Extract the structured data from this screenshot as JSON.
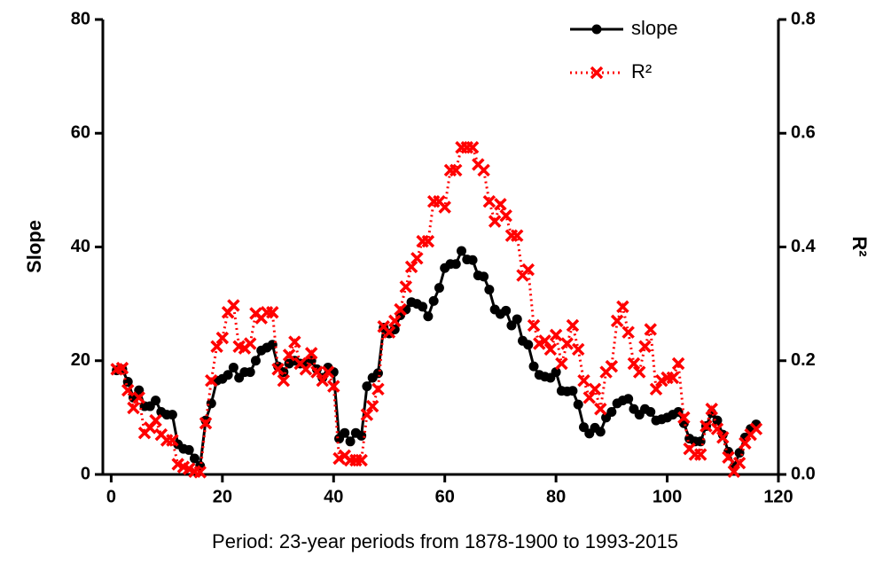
{
  "chart_data": {
    "type": "line",
    "xlabel": "Period: 23-year periods from 1878-1900 to 1993-2015",
    "ylabel": "Slope",
    "y2label": "R²",
    "x": [
      1,
      2,
      3,
      4,
      5,
      6,
      7,
      8,
      9,
      10,
      11,
      12,
      13,
      14,
      15,
      16,
      17,
      18,
      19,
      20,
      21,
      22,
      23,
      24,
      25,
      26,
      27,
      28,
      29,
      30,
      31,
      32,
      33,
      34,
      35,
      36,
      37,
      38,
      39,
      40,
      41,
      42,
      43,
      44,
      45,
      46,
      47,
      48,
      49,
      50,
      51,
      52,
      53,
      54,
      55,
      56,
      57,
      58,
      59,
      60,
      61,
      62,
      63,
      64,
      65,
      66,
      67,
      68,
      69,
      70,
      71,
      72,
      73,
      74,
      75,
      76,
      77,
      78,
      79,
      80,
      81,
      82,
      83,
      84,
      85,
      86,
      87,
      88,
      89,
      90,
      91,
      92,
      93,
      94,
      95,
      96,
      97,
      98,
      99,
      100,
      101,
      102,
      103,
      104,
      105,
      106,
      107,
      108,
      109,
      110,
      111,
      112,
      113,
      114,
      115,
      116
    ],
    "series": [
      {
        "name": "slope",
        "color": "#000000",
        "axis": "y",
        "values": [
          18.3,
          18.5,
          16.3,
          13.5,
          14.8,
          12,
          12,
          13,
          11,
          10.5,
          10.5,
          5.3,
          4.5,
          4.3,
          2.8,
          1.5,
          9.5,
          12.5,
          16.5,
          16.8,
          17.5,
          18.8,
          17,
          18,
          18,
          20,
          21.8,
          22.3,
          22.8,
          19,
          18,
          19.5,
          20,
          19.5,
          19.5,
          20,
          18.5,
          17,
          18.8,
          18,
          6.3,
          7.3,
          5.8,
          7.3,
          6.8,
          15.5,
          17,
          17.8,
          25.8,
          24.8,
          25.5,
          28,
          29,
          30.3,
          30,
          29.5,
          27.8,
          30.5,
          32.8,
          36.3,
          37,
          37,
          39.3,
          37.8,
          37.7,
          35,
          34.8,
          32.5,
          29,
          28.2,
          28.8,
          26.2,
          27.3,
          23.5,
          22.8,
          19,
          17.5,
          17.2,
          17,
          18,
          14.7,
          14.6,
          14.7,
          12.3,
          8.3,
          7.2,
          8.2,
          7.5,
          10,
          11,
          12.5,
          13,
          13.3,
          11.5,
          10.5,
          11.5,
          11,
          9.5,
          9.7,
          10,
          10.5,
          11,
          9,
          6.3,
          5.8,
          5.8,
          8.5,
          10.8,
          9.5,
          7,
          4,
          1.3,
          3.8,
          6.5,
          8,
          8.8
        ]
      },
      {
        "name": "R²",
        "color": "#ff0000",
        "axis": "y2",
        "values": [
          0.185,
          0.187,
          0.148,
          0.117,
          0.135,
          0.073,
          0.082,
          0.095,
          0.07,
          0.06,
          0.06,
          0.018,
          0.013,
          0.01,
          0.005,
          0.004,
          0.09,
          0.165,
          0.225,
          0.24,
          0.285,
          0.297,
          0.225,
          0.222,
          0.23,
          0.283,
          0.275,
          0.285,
          0.285,
          0.185,
          0.165,
          0.21,
          0.233,
          0.195,
          0.185,
          0.213,
          0.18,
          0.165,
          0.18,
          0.155,
          0.028,
          0.033,
          0.025,
          0.025,
          0.025,
          0.105,
          0.12,
          0.15,
          0.26,
          0.25,
          0.27,
          0.29,
          0.33,
          0.365,
          0.38,
          0.41,
          0.41,
          0.48,
          0.48,
          0.47,
          0.535,
          0.535,
          0.575,
          0.575,
          0.575,
          0.545,
          0.535,
          0.48,
          0.445,
          0.475,
          0.455,
          0.42,
          0.42,
          0.35,
          0.36,
          0.262,
          0.23,
          0.235,
          0.22,
          0.245,
          0.195,
          0.23,
          0.262,
          0.22,
          0.165,
          0.135,
          0.15,
          0.115,
          0.18,
          0.19,
          0.27,
          0.295,
          0.25,
          0.195,
          0.18,
          0.225,
          0.255,
          0.15,
          0.165,
          0.17,
          0.17,
          0.195,
          0.1,
          0.045,
          0.035,
          0.035,
          0.085,
          0.115,
          0.08,
          0.065,
          0.03,
          0.005,
          0.02,
          0.055,
          0.07,
          0.08
        ]
      }
    ],
    "xlim": [
      -1.5,
      120
    ],
    "xticks": [
      0,
      20,
      40,
      60,
      80,
      100,
      120
    ],
    "ylim": [
      0,
      80
    ],
    "yticks": [
      0,
      20,
      40,
      60,
      80
    ],
    "y2lim": [
      0,
      0.8
    ],
    "y2ticks": [
      {
        "value": 0,
        "label": "0.0"
      },
      0.2,
      0.4,
      0.6,
      0.8
    ],
    "legend": "upper right"
  }
}
